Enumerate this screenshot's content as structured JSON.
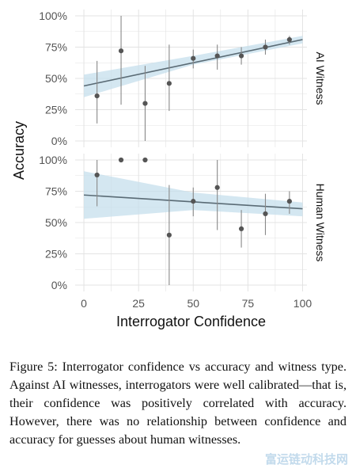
{
  "chart_data": {
    "type": "scatter",
    "xlabel": "Interrogator Confidence",
    "ylabel": "Accuracy",
    "xlim": [
      -4,
      102
    ],
    "ylim": [
      0,
      1
    ],
    "x_ticks": [
      0,
      25,
      50,
      75,
      100
    ],
    "x_tick_labels": [
      "0",
      "25",
      "50",
      "75",
      "100"
    ],
    "y_ticks": [
      0,
      0.25,
      0.5,
      0.75,
      1
    ],
    "y_tick_labels": [
      "0%",
      "25%",
      "50%",
      "75%",
      "100%"
    ],
    "grid": true,
    "colors": {
      "point": "#555555",
      "trend": "#5a6b75",
      "band": "#c6dfec",
      "grid": "#e3e3e3"
    },
    "panels": [
      {
        "strip_label": "AI Witness",
        "points": [
          {
            "x": 6,
            "y": 0.36,
            "low": 0.14,
            "high": 0.64
          },
          {
            "x": 17,
            "y": 0.72,
            "low": 0.29,
            "high": 1.0
          },
          {
            "x": 28,
            "y": 0.3,
            "low": 0.0,
            "high": 0.6
          },
          {
            "x": 39,
            "y": 0.46,
            "low": 0.24,
            "high": 0.77
          },
          {
            "x": 50,
            "y": 0.66,
            "low": 0.58,
            "high": 0.73
          },
          {
            "x": 61,
            "y": 0.68,
            "low": 0.57,
            "high": 0.77
          },
          {
            "x": 72,
            "y": 0.68,
            "low": 0.61,
            "high": 0.75
          },
          {
            "x": 83,
            "y": 0.75,
            "low": 0.69,
            "high": 0.81
          },
          {
            "x": 94,
            "y": 0.81,
            "low": 0.77,
            "high": 0.84
          }
        ],
        "trend": {
          "x": [
            0,
            100
          ],
          "y": [
            0.44,
            0.81
          ]
        },
        "band": {
          "x": [
            0,
            50,
            100
          ],
          "lower": [
            0.35,
            0.61,
            0.78
          ],
          "upper": [
            0.53,
            0.68,
            0.84
          ]
        }
      },
      {
        "strip_label": "Human Witness",
        "points": [
          {
            "x": 6,
            "y": 0.88,
            "low": 0.63,
            "high": 1.0
          },
          {
            "x": 17,
            "y": 1.0,
            "low": null,
            "high": null
          },
          {
            "x": 28,
            "y": 1.0,
            "low": null,
            "high": null
          },
          {
            "x": 39,
            "y": 0.4,
            "low": 0.0,
            "high": 0.8
          },
          {
            "x": 50,
            "y": 0.67,
            "low": 0.55,
            "high": 0.78
          },
          {
            "x": 61,
            "y": 0.78,
            "low": 0.44,
            "high": 1.0
          },
          {
            "x": 72,
            "y": 0.45,
            "low": 0.3,
            "high": 0.6
          },
          {
            "x": 83,
            "y": 0.57,
            "low": 0.4,
            "high": 0.73
          },
          {
            "x": 94,
            "y": 0.67,
            "low": 0.57,
            "high": 0.75
          }
        ],
        "trend": {
          "x": [
            0,
            100
          ],
          "y": [
            0.72,
            0.61
          ]
        },
        "band": {
          "x": [
            0,
            50,
            100
          ],
          "lower": [
            0.53,
            0.6,
            0.55
          ],
          "upper": [
            0.91,
            0.74,
            0.66
          ]
        }
      }
    ]
  },
  "caption": "Figure 5: Interrogator confidence vs accuracy and witness type. Against AI witnesses, interrogators were well calibrated—that is, their confidence was positively correlated with accuracy. However, there was no relationship between confidence and accuracy for guesses about human witnesses.",
  "watermark": "富运链动科技网"
}
